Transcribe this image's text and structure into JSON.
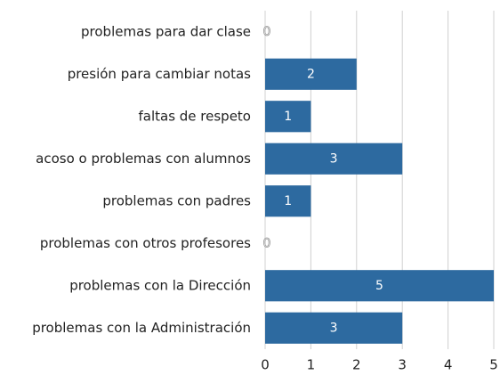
{
  "chart_data": {
    "type": "bar",
    "orientation": "horizontal",
    "categories": [
      "problemas para dar clase",
      "presión para cambiar notas",
      "faltas de respeto",
      "acoso o problemas con alumnos",
      "problemas con padres",
      "problemas con otros profesores",
      "problemas con la Dirección",
      "problemas con la Administración"
    ],
    "values": [
      0,
      2,
      1,
      3,
      1,
      0,
      5,
      3
    ],
    "color": "#2d6aa0",
    "xlim": [
      0,
      5
    ],
    "xticks": [
      0,
      1,
      2,
      3,
      4,
      5
    ],
    "grid": true
  }
}
